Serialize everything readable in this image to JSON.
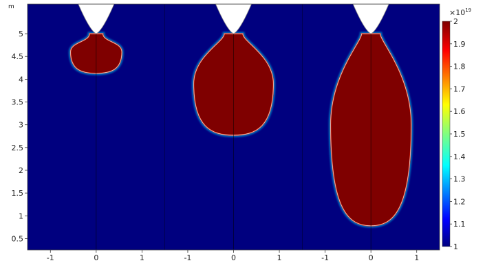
{
  "chart_data": {
    "type": "heatmap",
    "title": "",
    "xlabel": "",
    "ylabel": "",
    "y_unit_label": "m",
    "grid": false,
    "legend": "colorbar-right",
    "panels": [
      {
        "x_ticks": [
          "-1",
          "0",
          "1"
        ],
        "xlim": [
          -1.5,
          1.5
        ],
        "bulb": {
          "center_x": 0,
          "center_y": 4.6,
          "half_width": 0.56,
          "top": 5.0,
          "bottom": 4.13
        }
      },
      {
        "x_ticks": [
          "-1",
          "0",
          "1"
        ],
        "xlim": [
          -1.5,
          1.5
        ],
        "bulb": {
          "center_x": 0,
          "center_y": 3.9,
          "half_width": 0.87,
          "top": 5.0,
          "bottom": 2.77
        }
      },
      {
        "x_ticks": [
          "-1",
          "0",
          "1"
        ],
        "xlim": [
          -1.5,
          1.5
        ],
        "bulb": {
          "center_x": 0,
          "center_y": 3.0,
          "half_width": 0.88,
          "top": 5.0,
          "bottom": 0.78
        }
      }
    ],
    "y_ticks": [
      "0.5",
      "1",
      "1.5",
      "2",
      "2.5",
      "3",
      "3.5",
      "4",
      "4.5",
      "5"
    ],
    "ylim": [
      0.25,
      5.65
    ],
    "needle": {
      "tip_y": 5.0,
      "color": "#ffffff"
    },
    "colorbar": {
      "exponent_label": "×10",
      "exponent_power": "19",
      "min": 1,
      "max": 2,
      "ticks": [
        "1",
        "1.1",
        "1.2",
        "1.3",
        "1.4",
        "1.5",
        "1.6",
        "1.7",
        "1.8",
        "1.9",
        "2"
      ],
      "colors": [
        "#00007f",
        "#0000ff",
        "#007fff",
        "#00ffff",
        "#7fff7f",
        "#ffff00",
        "#ff7f00",
        "#ff0000",
        "#7f0000"
      ]
    }
  }
}
